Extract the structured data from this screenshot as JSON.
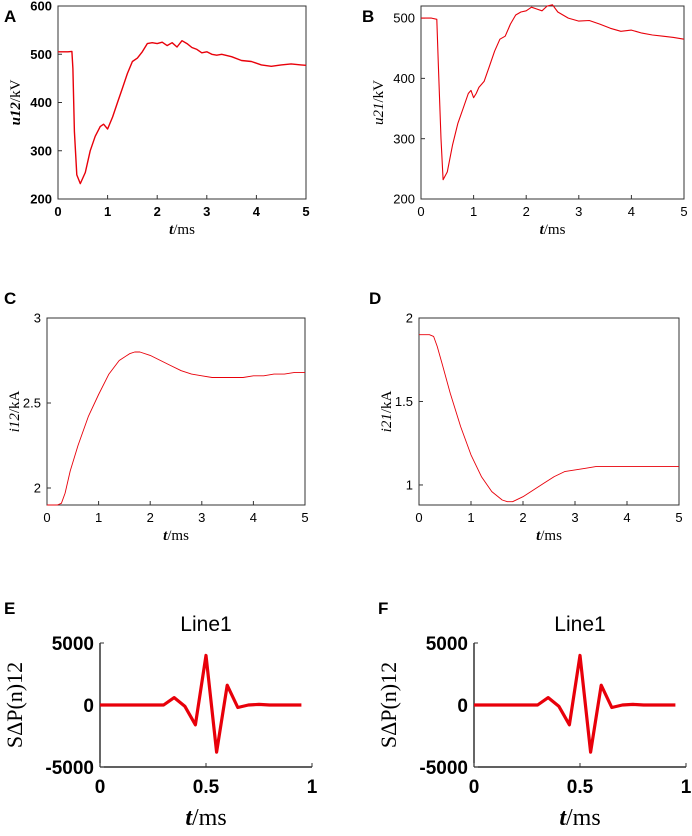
{
  "figure": {
    "colors": {
      "line": "#e8000a",
      "axis": "#000000",
      "bg": "#ffffff"
    }
  },
  "chart_data": [
    {
      "panel": "A",
      "type": "line",
      "title": "",
      "xlabel_italic": "t",
      "xlabel_unit": "/ms",
      "ylabel_italic": "u12",
      "ylabel_unit": "/kV",
      "xlim": [
        0,
        5
      ],
      "ylim": [
        200,
        600
      ],
      "xticks": [
        0,
        1,
        2,
        3,
        4,
        5
      ],
      "yticks": [
        200,
        300,
        400,
        500,
        600
      ],
      "series": [
        {
          "name": "u12",
          "x": [
            0,
            0.1,
            0.2,
            0.28,
            0.3,
            0.33,
            0.38,
            0.45,
            0.55,
            0.65,
            0.75,
            0.85,
            0.92,
            1.0,
            1.1,
            1.2,
            1.3,
            1.4,
            1.5,
            1.6,
            1.7,
            1.8,
            1.9,
            2.0,
            2.1,
            2.2,
            2.3,
            2.4,
            2.5,
            2.6,
            2.7,
            2.8,
            2.9,
            3.0,
            3.1,
            3.2,
            3.3,
            3.5,
            3.7,
            3.9,
            4.1,
            4.3,
            4.5,
            4.7,
            4.9,
            5.0
          ],
          "values": [
            505,
            505,
            505,
            506,
            470,
            340,
            250,
            232,
            255,
            300,
            330,
            350,
            355,
            345,
            370,
            400,
            430,
            460,
            485,
            492,
            505,
            522,
            524,
            522,
            525,
            518,
            524,
            515,
            528,
            522,
            514,
            510,
            503,
            505,
            500,
            498,
            500,
            495,
            487,
            485,
            478,
            475,
            478,
            480,
            478,
            477
          ]
        }
      ]
    },
    {
      "panel": "B",
      "type": "line",
      "title": "",
      "xlabel_italic": "t",
      "xlabel_unit": "/ms",
      "ylabel_italic": "u21",
      "ylabel_unit": "/kV",
      "xlim": [
        0,
        5
      ],
      "ylim": [
        200,
        520
      ],
      "xticks": [
        0,
        1,
        2,
        3,
        4,
        5
      ],
      "yticks": [
        200,
        300,
        400,
        500
      ],
      "series": [
        {
          "name": "u21",
          "x": [
            0,
            0.1,
            0.2,
            0.3,
            0.33,
            0.38,
            0.42,
            0.5,
            0.6,
            0.7,
            0.8,
            0.9,
            0.95,
            1.0,
            1.05,
            1.1,
            1.2,
            1.3,
            1.4,
            1.5,
            1.6,
            1.7,
            1.8,
            1.9,
            2.0,
            2.1,
            2.2,
            2.3,
            2.4,
            2.5,
            2.6,
            2.8,
            3.0,
            3.2,
            3.4,
            3.6,
            3.8,
            4.0,
            4.2,
            4.4,
            4.6,
            4.8,
            5.0
          ],
          "values": [
            500,
            500,
            500,
            498,
            420,
            300,
            232,
            245,
            290,
            325,
            350,
            375,
            380,
            368,
            375,
            385,
            395,
            420,
            445,
            465,
            470,
            490,
            505,
            510,
            512,
            518,
            515,
            512,
            520,
            522,
            510,
            500,
            495,
            496,
            490,
            483,
            478,
            480,
            475,
            472,
            470,
            468,
            465
          ]
        }
      ]
    },
    {
      "panel": "C",
      "type": "line",
      "title": "",
      "xlabel_italic": "t",
      "xlabel_unit": "/ms",
      "ylabel_italic": "i12",
      "ylabel_unit": "/kA",
      "xlim": [
        0,
        5
      ],
      "ylim": [
        1.9,
        3.0
      ],
      "xticks": [
        0,
        1,
        2,
        3,
        4,
        5
      ],
      "yticks": [
        2,
        2.5,
        3
      ],
      "series": [
        {
          "name": "i12",
          "x": [
            0,
            0.1,
            0.2,
            0.28,
            0.35,
            0.45,
            0.6,
            0.8,
            1.0,
            1.2,
            1.4,
            1.6,
            1.7,
            1.8,
            2.0,
            2.2,
            2.4,
            2.6,
            2.8,
            3.0,
            3.2,
            3.4,
            3.6,
            3.8,
            4.0,
            4.2,
            4.4,
            4.6,
            4.8,
            5.0
          ],
          "values": [
            1.9,
            1.9,
            1.9,
            1.91,
            1.97,
            2.1,
            2.25,
            2.42,
            2.55,
            2.67,
            2.75,
            2.79,
            2.8,
            2.8,
            2.78,
            2.75,
            2.72,
            2.69,
            2.67,
            2.66,
            2.65,
            2.65,
            2.65,
            2.65,
            2.66,
            2.66,
            2.67,
            2.67,
            2.68,
            2.68
          ]
        }
      ]
    },
    {
      "panel": "D",
      "type": "line",
      "title": "",
      "xlabel_italic": "t",
      "xlabel_unit": "/ms",
      "ylabel_italic": "i21",
      "ylabel_unit": "/kA",
      "xlim": [
        0,
        5
      ],
      "ylim": [
        0.88,
        2.0
      ],
      "xticks": [
        0,
        1,
        2,
        3,
        4,
        5
      ],
      "yticks": [
        1,
        1.5,
        2
      ],
      "series": [
        {
          "name": "i21",
          "x": [
            0,
            0.1,
            0.2,
            0.28,
            0.35,
            0.45,
            0.6,
            0.8,
            1.0,
            1.2,
            1.4,
            1.6,
            1.7,
            1.8,
            2.0,
            2.2,
            2.4,
            2.6,
            2.8,
            3.0,
            3.2,
            3.4,
            3.6,
            3.8,
            4.0,
            4.2,
            4.4,
            4.6,
            4.8,
            5.0
          ],
          "values": [
            1.9,
            1.9,
            1.9,
            1.89,
            1.83,
            1.72,
            1.55,
            1.35,
            1.18,
            1.05,
            0.96,
            0.91,
            0.9,
            0.9,
            0.93,
            0.97,
            1.01,
            1.05,
            1.08,
            1.09,
            1.1,
            1.11,
            1.11,
            1.11,
            1.11,
            1.11,
            1.11,
            1.11,
            1.11,
            1.11
          ]
        }
      ]
    },
    {
      "panel": "E",
      "type": "line",
      "title": "Line1",
      "xlabel_italic": "t",
      "xlabel_unit": "/ms",
      "ylabel_italic": "",
      "ylabel_unit": "SΔP(n)12",
      "xlim": [
        0,
        1
      ],
      "ylim": [
        -5000,
        5000
      ],
      "xticks": [
        0,
        0.5,
        1
      ],
      "yticks": [
        -5000,
        0,
        5000
      ],
      "series": [
        {
          "name": "SΔP(n)12",
          "x": [
            0,
            0.05,
            0.1,
            0.15,
            0.2,
            0.25,
            0.3,
            0.35,
            0.4,
            0.45,
            0.5,
            0.55,
            0.6,
            0.65,
            0.7,
            0.75,
            0.8,
            0.85,
            0.9,
            0.95
          ],
          "values": [
            0,
            0,
            0,
            0,
            0,
            0,
            0,
            600,
            -100,
            -1600,
            4000,
            -3800,
            1600,
            -200,
            0,
            50,
            0,
            0,
            0,
            0
          ]
        }
      ]
    },
    {
      "panel": "F",
      "type": "line",
      "title": "Line1",
      "xlabel_italic": "t",
      "xlabel_unit": "/ms",
      "ylabel_italic": "",
      "ylabel_unit": "SΔP(n)12",
      "xlim": [
        0,
        1
      ],
      "ylim": [
        -5000,
        5000
      ],
      "xticks": [
        0,
        0.5,
        1
      ],
      "yticks": [
        -5000,
        0,
        5000
      ],
      "series": [
        {
          "name": "SΔP(n)12",
          "x": [
            0,
            0.05,
            0.1,
            0.15,
            0.2,
            0.25,
            0.3,
            0.35,
            0.4,
            0.45,
            0.5,
            0.55,
            0.6,
            0.65,
            0.7,
            0.75,
            0.8,
            0.85,
            0.9,
            0.95
          ],
          "values": [
            0,
            0,
            0,
            0,
            0,
            0,
            0,
            600,
            -100,
            -1600,
            4000,
            -3800,
            1600,
            -200,
            0,
            50,
            0,
            0,
            0,
            0
          ]
        }
      ]
    }
  ]
}
